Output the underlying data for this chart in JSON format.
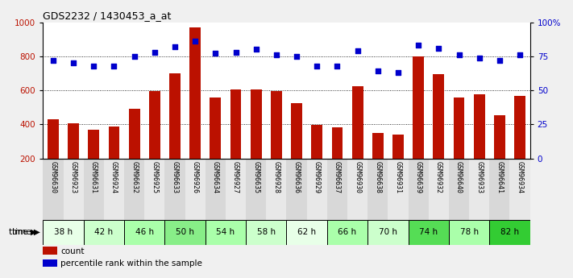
{
  "title": "GDS2232 / 1430453_a_at",
  "categories": [
    "GSM96630",
    "GSM96923",
    "GSM96631",
    "GSM96924",
    "GSM96632",
    "GSM96925",
    "GSM96633",
    "GSM96926",
    "GSM96634",
    "GSM96927",
    "GSM96635",
    "GSM96928",
    "GSM96636",
    "GSM96929",
    "GSM96637",
    "GSM96930",
    "GSM96638",
    "GSM96931",
    "GSM96639",
    "GSM96932",
    "GSM96640",
    "GSM96933",
    "GSM96641",
    "GSM96934"
  ],
  "time_groups": [
    {
      "label": "38 h",
      "count": 2,
      "color": "#e8ffe8"
    },
    {
      "label": "42 h",
      "count": 2,
      "color": "#ccffcc"
    },
    {
      "label": "46 h",
      "count": 2,
      "color": "#aaffaa"
    },
    {
      "label": "50 h",
      "count": 2,
      "color": "#88ee88"
    },
    {
      "label": "54 h",
      "count": 2,
      "color": "#aaffaa"
    },
    {
      "label": "58 h",
      "count": 2,
      "color": "#ccffcc"
    },
    {
      "label": "62 h",
      "count": 2,
      "color": "#e8ffe8"
    },
    {
      "label": "66 h",
      "count": 2,
      "color": "#aaffaa"
    },
    {
      "label": "70 h",
      "count": 2,
      "color": "#ccffcc"
    },
    {
      "label": "74 h",
      "count": 2,
      "color": "#55dd55"
    },
    {
      "label": "78 h",
      "count": 2,
      "color": "#aaffaa"
    },
    {
      "label": "82 h",
      "count": 2,
      "color": "#33cc33"
    }
  ],
  "bar_values": [
    430,
    405,
    370,
    390,
    490,
    598,
    700,
    968,
    557,
    605,
    605,
    595,
    525,
    395,
    382,
    625,
    352,
    338,
    797,
    695,
    558,
    578,
    452,
    568
  ],
  "dot_values": [
    72,
    70,
    68,
    68,
    75,
    78,
    82,
    86,
    77,
    78,
    80,
    76,
    75,
    68,
    68,
    79,
    64,
    63,
    83,
    81,
    76,
    74,
    72,
    76
  ],
  "bar_color": "#bb1100",
  "dot_color": "#0000cc",
  "ylim_left": [
    200,
    1000
  ],
  "ylim_right": [
    0,
    100
  ],
  "yticks_left": [
    200,
    400,
    600,
    800,
    1000
  ],
  "yticks_right": [
    0,
    25,
    50,
    75,
    100
  ],
  "grid_values": [
    400,
    600,
    800
  ],
  "legend_items": [
    {
      "label": "count",
      "color": "#bb1100"
    },
    {
      "label": "percentile rank within the sample",
      "color": "#0000cc"
    }
  ],
  "bar_width": 0.55,
  "background_color": "#f0f0f0",
  "plot_bg_color": "#ffffff",
  "cat_label_fontsize": 6.0,
  "time_label_fontsize": 7.5,
  "title_fontsize": 9,
  "legend_fontsize": 7.5,
  "ytick_fontsize": 7.5
}
